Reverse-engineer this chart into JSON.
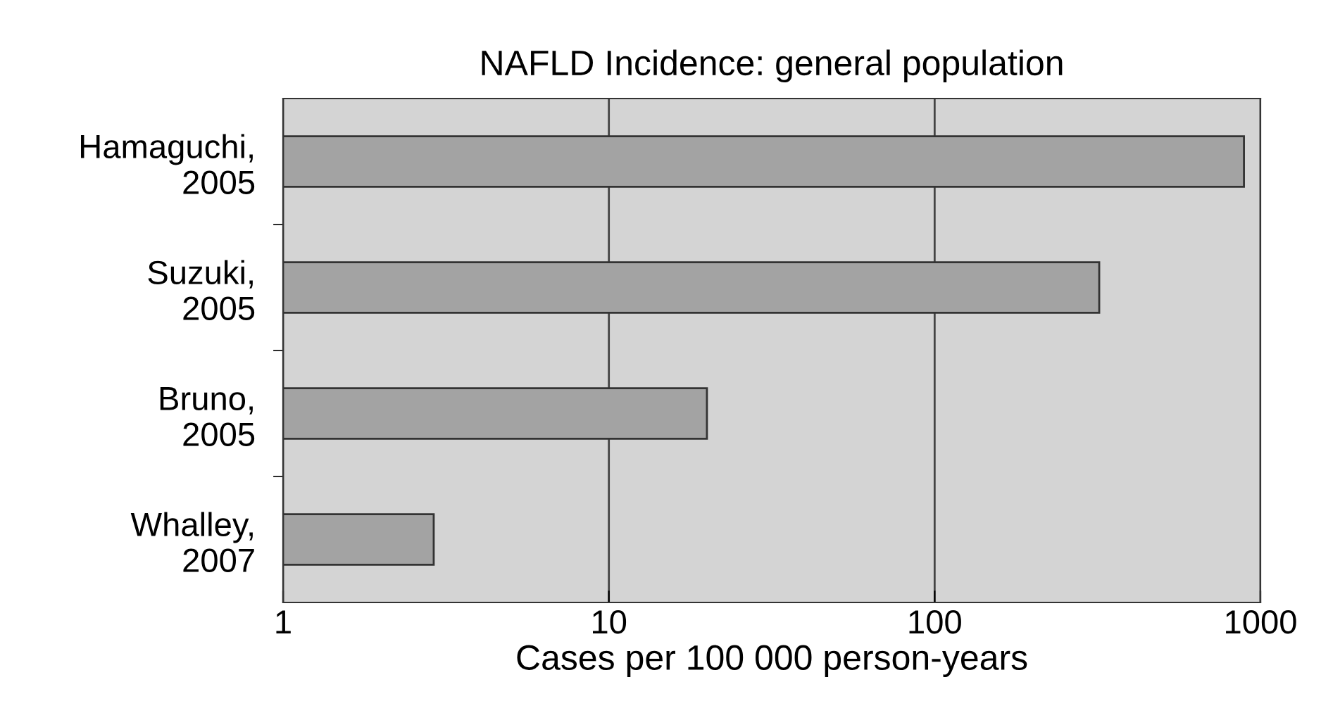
{
  "chart_data": {
    "type": "bar",
    "orientation": "horizontal",
    "title": "NAFLD Incidence: general population",
    "xlabel": "Cases per 100 000 person-years",
    "categories": [
      "Hamaguchi,\n2005",
      "Suzuki,\n2005",
      "Bruno,\n2005",
      "Whalley,\n2007"
    ],
    "values": [
      890,
      320,
      20,
      2.9
    ],
    "color": "#a3a3a3",
    "log": "x",
    "xlim": [
      1,
      1000
    ],
    "xticks": [
      1,
      10,
      100,
      1000
    ],
    "grid": "x",
    "legend": false
  }
}
